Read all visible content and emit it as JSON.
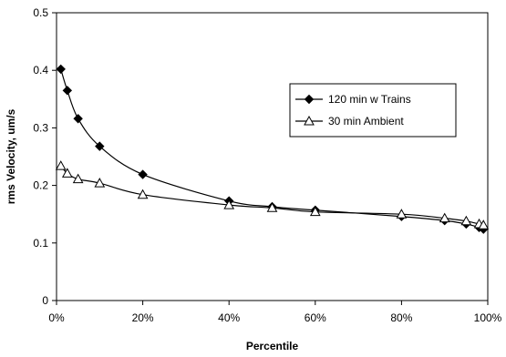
{
  "chart_data": {
    "type": "line",
    "title": "",
    "xlabel": "Percentile",
    "ylabel": "rms Velocity, um/s",
    "xlim": [
      0,
      100
    ],
    "ylim": [
      0,
      0.5
    ],
    "x_ticks": [
      0,
      20,
      40,
      60,
      80,
      100
    ],
    "x_tick_labels": [
      "0%",
      "20%",
      "40%",
      "60%",
      "80%",
      "100%"
    ],
    "y_ticks": [
      0,
      0.1,
      0.2,
      0.3,
      0.4,
      0.5
    ],
    "y_tick_labels": [
      "0",
      "0.1",
      "0.2",
      "0.3",
      "0.4",
      "0.5"
    ],
    "grid": false,
    "legend_position": "right",
    "series": [
      {
        "name": "120 min w  Trains",
        "marker": "filled-diamond",
        "color": "#000000",
        "points": [
          [
            1,
            0.402
          ],
          [
            2.5,
            0.365
          ],
          [
            5,
            0.316
          ],
          [
            10,
            0.268
          ],
          [
            20,
            0.219
          ],
          [
            40,
            0.173
          ],
          [
            50,
            0.163
          ],
          [
            60,
            0.157
          ],
          [
            80,
            0.146
          ],
          [
            90,
            0.139
          ],
          [
            95,
            0.133
          ],
          [
            98,
            0.127
          ],
          [
            99,
            0.124
          ]
        ]
      },
      {
        "name": "30 min Ambient",
        "marker": "open-triangle",
        "color": "#000000",
        "points": [
          [
            1,
            0.234
          ],
          [
            2.5,
            0.221
          ],
          [
            5,
            0.211
          ],
          [
            10,
            0.204
          ],
          [
            20,
            0.184
          ],
          [
            40,
            0.166
          ],
          [
            50,
            0.161
          ],
          [
            60,
            0.154
          ],
          [
            80,
            0.15
          ],
          [
            90,
            0.143
          ],
          [
            95,
            0.138
          ],
          [
            98,
            0.133
          ],
          [
            99,
            0.131
          ]
        ]
      }
    ]
  }
}
